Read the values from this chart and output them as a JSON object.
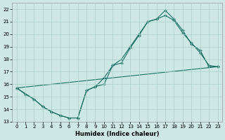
{
  "xlabel": "Humidex (Indice chaleur)",
  "background_color": "#cde8e4",
  "grid_color": "#aacfca",
  "line_color": "#1a6e64",
  "xlim": [
    -0.5,
    23.5
  ],
  "ylim": [
    13,
    22.5
  ],
  "xticks": [
    0,
    1,
    2,
    3,
    4,
    5,
    6,
    7,
    8,
    9,
    10,
    11,
    12,
    13,
    14,
    15,
    16,
    17,
    18,
    19,
    20,
    21,
    22,
    23
  ],
  "yticks": [
    13,
    14,
    15,
    16,
    17,
    18,
    19,
    20,
    21,
    22
  ],
  "line1_x": [
    0,
    1,
    2,
    3,
    4,
    5,
    6,
    7,
    8,
    9,
    10,
    11,
    12,
    13,
    14,
    15,
    16,
    17,
    18,
    19,
    20,
    21,
    22,
    23
  ],
  "line1_y": [
    15.7,
    15.2,
    14.8,
    14.2,
    13.8,
    13.5,
    13.3,
    13.3,
    15.5,
    15.8,
    16.5,
    17.5,
    17.7,
    18.9,
    19.9,
    21.0,
    21.2,
    21.9,
    21.2,
    20.3,
    19.2,
    18.7,
    17.4,
    17.4
  ],
  "line2_x": [
    0,
    2,
    3,
    4,
    5,
    6,
    7,
    8,
    9,
    10,
    11,
    12,
    13,
    14,
    15,
    16,
    17,
    18,
    19,
    20,
    21,
    22,
    23
  ],
  "line2_y": [
    15.7,
    14.8,
    14.2,
    13.8,
    13.5,
    13.3,
    13.3,
    15.5,
    15.8,
    16.0,
    17.5,
    18.0,
    19.0,
    20.0,
    21.0,
    21.2,
    21.5,
    21.1,
    20.1,
    19.3,
    18.5,
    17.5,
    17.4
  ],
  "line3_x": [
    0,
    23
  ],
  "line3_y": [
    15.7,
    17.4
  ]
}
